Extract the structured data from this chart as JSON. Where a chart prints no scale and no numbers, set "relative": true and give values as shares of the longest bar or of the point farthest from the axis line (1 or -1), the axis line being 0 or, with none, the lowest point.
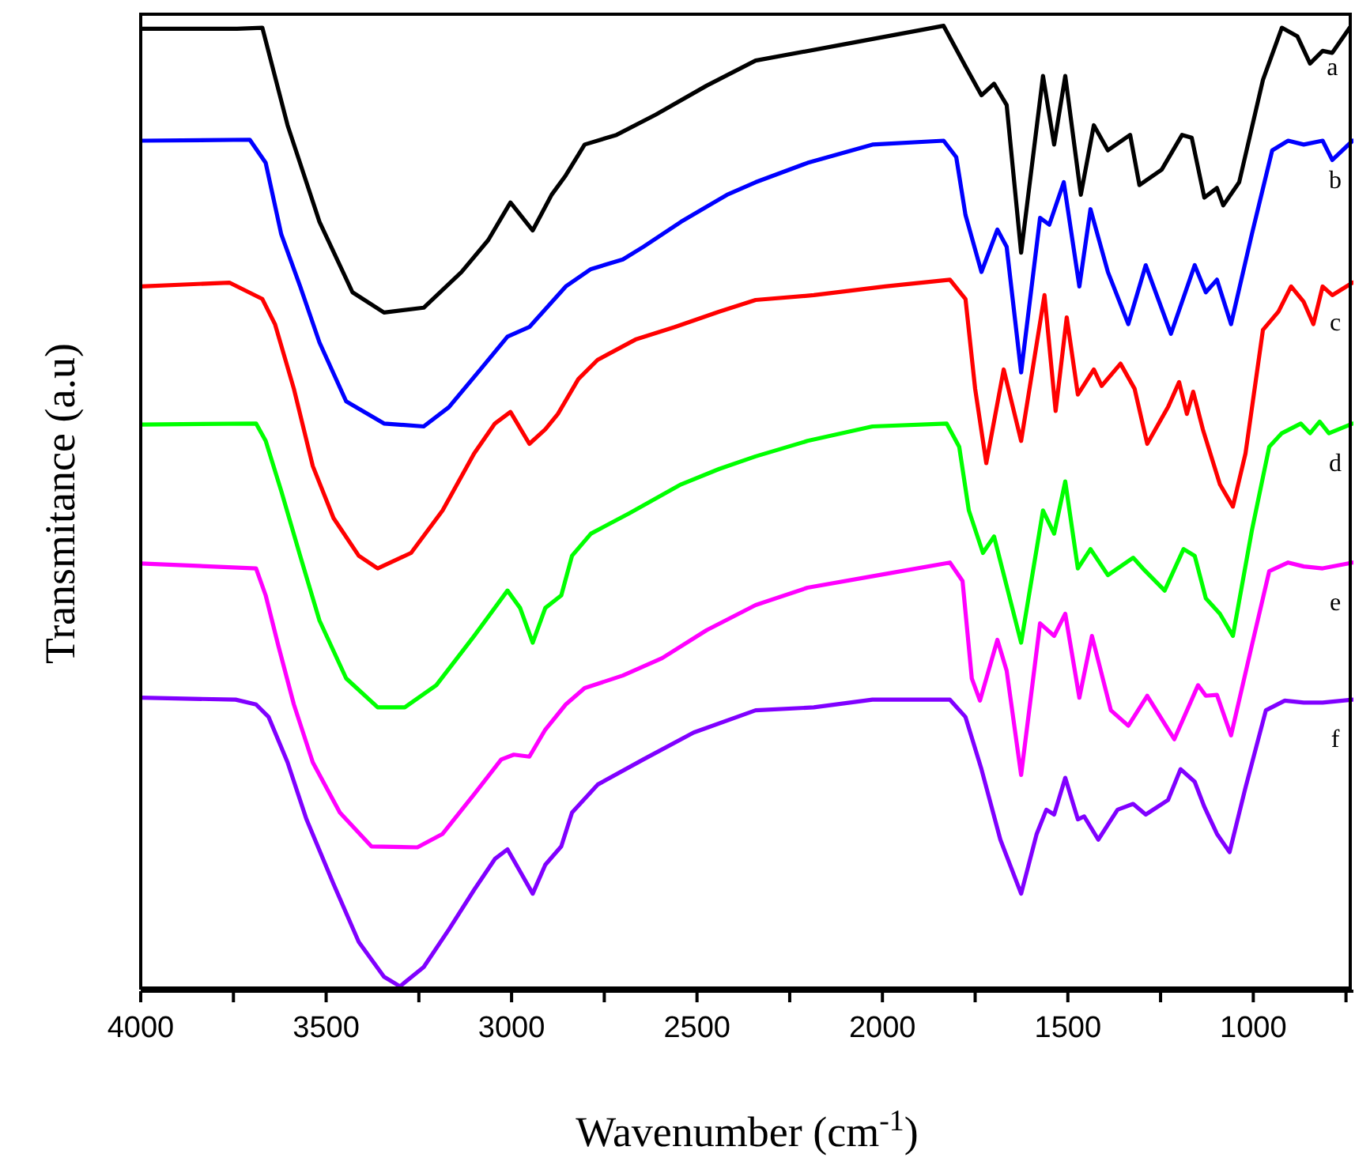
{
  "chart_data": {
    "type": "line",
    "relative": true,
    "xlabel": "Wavenumber (cm$^{-1}$)",
    "ylabel": "Transmitance (a.u)",
    "xlim": [
      4000,
      730
    ],
    "xticks": [
      4000,
      {
        "value": 3750,
        "label": null
      },
      3500,
      {
        "value": 3250,
        "label": null
      },
      3000,
      {
        "value": 2750,
        "label": null
      },
      2500,
      {
        "value": 2250,
        "label": null
      },
      2000,
      {
        "value": 1750,
        "label": null
      },
      1500,
      {
        "value": 1250,
        "label": null
      },
      1000,
      {
        "value": 750,
        "label": null
      }
    ],
    "tick_labels": "x",
    "series": [
      {
        "name": "a",
        "color": "#000000",
        "x": [
          4000,
          3740,
          3672,
          3604,
          3518,
          3429,
          3344,
          3237,
          3135,
          3063,
          3003,
          2943,
          2892,
          2854,
          2803,
          2717,
          2611,
          2474,
          2342,
          2116,
          1835,
          1776,
          1733,
          1699,
          1665,
          1626,
          1567,
          1537,
          1507,
          1465,
          1430,
          1392,
          1332,
          1307,
          1247,
          1192,
          1166,
          1132,
          1098,
          1081,
          1038,
          974,
          923,
          881,
          847,
          813,
          787,
          740
        ],
        "values": [
          0.997,
          0.997,
          0.998,
          0.897,
          0.797,
          0.724,
          0.703,
          0.708,
          0.745,
          0.778,
          0.817,
          0.788,
          0.825,
          0.845,
          0.877,
          0.887,
          0.908,
          0.938,
          0.964,
          0.98,
          1,
          0.958,
          0.928,
          0.94,
          0.918,
          0.765,
          0.948,
          0.877,
          0.948,
          0.825,
          0.897,
          0.871,
          0.887,
          0.835,
          0.851,
          0.887,
          0.884,
          0.822,
          0.832,
          0.814,
          0.838,
          0.944,
          0.998,
          0.989,
          0.961,
          0.974,
          0.972,
          0.998
        ]
      },
      {
        "name": "b",
        "color": "#0000ff",
        "x": [
          4000,
          3706,
          3663,
          3621,
          3570,
          3518,
          3446,
          3344,
          3237,
          3169,
          3084,
          3011,
          2952,
          2854,
          2786,
          2700,
          2645,
          2543,
          2419,
          2342,
          2202,
          2027,
          1835,
          1801,
          1776,
          1733,
          1690,
          1665,
          1626,
          1575,
          1550,
          1511,
          1469,
          1439,
          1392,
          1337,
          1290,
          1222,
          1158,
          1128,
          1098,
          1060,
          1004,
          949,
          906,
          864,
          813,
          787,
          732
        ],
        "values": [
          0.881,
          0.882,
          0.858,
          0.784,
          0.73,
          0.672,
          0.611,
          0.588,
          0.585,
          0.605,
          0.644,
          0.678,
          0.688,
          0.73,
          0.748,
          0.758,
          0.771,
          0.797,
          0.825,
          0.838,
          0.858,
          0.877,
          0.881,
          0.864,
          0.804,
          0.745,
          0.789,
          0.771,
          0.641,
          0.801,
          0.794,
          0.838,
          0.73,
          0.81,
          0.745,
          0.691,
          0.752,
          0.681,
          0.752,
          0.724,
          0.737,
          0.691,
          0.784,
          0.871,
          0.881,
          0.877,
          0.881,
          0.861,
          0.881
        ]
      },
      {
        "name": "c",
        "color": "#ff0000",
        "x": [
          4000,
          3761,
          3672,
          3638,
          3587,
          3536,
          3480,
          3412,
          3361,
          3271,
          3186,
          3101,
          3045,
          3003,
          2952,
          2909,
          2875,
          2820,
          2768,
          2666,
          2560,
          2440,
          2342,
          2185,
          1993,
          1818,
          1776,
          1750,
          1720,
          1673,
          1626,
          1563,
          1533,
          1503,
          1473,
          1430,
          1409,
          1358,
          1320,
          1286,
          1230,
          1200,
          1179,
          1162,
          1136,
          1090,
          1055,
          1021,
          974,
          932,
          898,
          864,
          838,
          813,
          787,
          732
        ],
        "values": [
          0.73,
          0.734,
          0.717,
          0.691,
          0.624,
          0.544,
          0.49,
          0.451,
          0.438,
          0.454,
          0.498,
          0.557,
          0.588,
          0.6,
          0.567,
          0.582,
          0.598,
          0.634,
          0.654,
          0.675,
          0.688,
          0.704,
          0.716,
          0.721,
          0.73,
          0.737,
          0.717,
          0.624,
          0.547,
          0.644,
          0.57,
          0.721,
          0.601,
          0.698,
          0.618,
          0.644,
          0.627,
          0.65,
          0.624,
          0.567,
          0.605,
          0.631,
          0.598,
          0.621,
          0.582,
          0.525,
          0.502,
          0.557,
          0.685,
          0.704,
          0.73,
          0.714,
          0.691,
          0.73,
          0.721,
          0.734
        ]
      },
      {
        "name": "d",
        "color": "#00ff00",
        "x": [
          4000,
          3689,
          3663,
          3621,
          3570,
          3518,
          3446,
          3361,
          3288,
          3203,
          3101,
          3011,
          2977,
          2943,
          2909,
          2866,
          2837,
          2786,
          2683,
          2543,
          2440,
          2342,
          2202,
          2027,
          1827,
          1793,
          1767,
          1729,
          1699,
          1626,
          1567,
          1537,
          1507,
          1473,
          1439,
          1392,
          1324,
          1298,
          1239,
          1188,
          1158,
          1128,
          1090,
          1055,
          1004,
          957,
          923,
          872,
          847,
          821,
          796,
          732
        ],
        "values": [
          0.587,
          0.588,
          0.57,
          0.518,
          0.451,
          0.384,
          0.324,
          0.294,
          0.294,
          0.317,
          0.368,
          0.415,
          0.397,
          0.361,
          0.397,
          0.41,
          0.451,
          0.474,
          0.495,
          0.525,
          0.541,
          0.554,
          0.57,
          0.585,
          0.588,
          0.564,
          0.498,
          0.454,
          0.471,
          0.361,
          0.498,
          0.474,
          0.528,
          0.438,
          0.458,
          0.431,
          0.449,
          0.438,
          0.415,
          0.458,
          0.451,
          0.407,
          0.391,
          0.368,
          0.477,
          0.564,
          0.578,
          0.588,
          0.578,
          0.59,
          0.578,
          0.588
        ]
      },
      {
        "name": "e",
        "color": "#ff00ff",
        "x": [
          4000,
          3689,
          3663,
          3629,
          3587,
          3536,
          3463,
          3378,
          3254,
          3186,
          3101,
          3028,
          2994,
          2952,
          2909,
          2854,
          2803,
          2700,
          2594,
          2474,
          2342,
          2202,
          2010,
          1818,
          1784,
          1759,
          1737,
          1690,
          1665,
          1626,
          1575,
          1537,
          1507,
          1469,
          1435,
          1384,
          1337,
          1286,
          1213,
          1149,
          1128,
          1098,
          1060,
          1004,
          957,
          906,
          864,
          813,
          732
        ],
        "values": [
          0.443,
          0.438,
          0.41,
          0.358,
          0.297,
          0.237,
          0.185,
          0.15,
          0.149,
          0.163,
          0.204,
          0.24,
          0.245,
          0.243,
          0.271,
          0.297,
          0.314,
          0.327,
          0.345,
          0.374,
          0.4,
          0.418,
          0.431,
          0.444,
          0.425,
          0.324,
          0.301,
          0.364,
          0.332,
          0.224,
          0.381,
          0.368,
          0.391,
          0.304,
          0.368,
          0.291,
          0.275,
          0.306,
          0.261,
          0.317,
          0.306,
          0.307,
          0.265,
          0.358,
          0.435,
          0.444,
          0.44,
          0.438,
          0.444
        ]
      },
      {
        "name": "f",
        "color": "#8000ff",
        "x": [
          4000,
          3744,
          3689,
          3655,
          3604,
          3553,
          3480,
          3412,
          3344,
          3301,
          3237,
          3169,
          3101,
          3045,
          3011,
          2977,
          2943,
          2909,
          2866,
          2837,
          2768,
          2645,
          2509,
          2342,
          2185,
          2027,
          1818,
          1776,
          1733,
          1682,
          1626,
          1584,
          1558,
          1537,
          1507,
          1473,
          1456,
          1418,
          1366,
          1324,
          1290,
          1230,
          1196,
          1158,
          1132,
          1098,
          1064,
          1021,
          966,
          915,
          864,
          813,
          732
        ],
        "values": [
          0.304,
          0.302,
          0.297,
          0.284,
          0.237,
          0.178,
          0.111,
          0.051,
          0.015,
          0.005,
          0.025,
          0.064,
          0.105,
          0.137,
          0.147,
          0.124,
          0.101,
          0.131,
          0.15,
          0.185,
          0.214,
          0.24,
          0.268,
          0.291,
          0.294,
          0.302,
          0.302,
          0.284,
          0.23,
          0.157,
          0.101,
          0.163,
          0.188,
          0.183,
          0.221,
          0.178,
          0.181,
          0.157,
          0.188,
          0.194,
          0.183,
          0.198,
          0.23,
          0.217,
          0.191,
          0.163,
          0.144,
          0.211,
          0.291,
          0.301,
          0.299,
          0.299,
          0.302
        ]
      }
    ]
  }
}
